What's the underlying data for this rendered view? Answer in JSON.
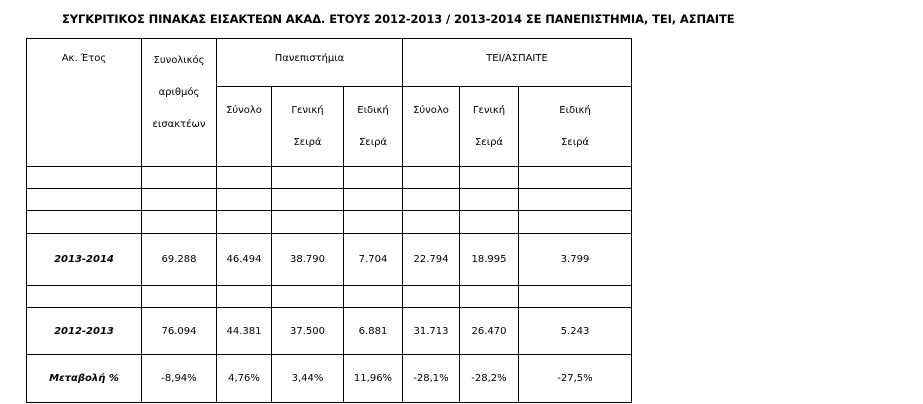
{
  "title": "ΣΥΓΚΡΙΤΙΚΟΣ ΠΙΝΑΚΑΣ ΕΙΣΑΚΤΕΩΝ ΑΚΑΔ. ΕΤΟΥΣ 2012-2013 / 2013-2014 ΣΕ ΠΑΝΕΠΙΣΤΗΜΙΑ, ΤΕΙ, ΑΣΠΑΙΤΕ",
  "table": {
    "header": {
      "year": "Ακ. Έτος",
      "total": [
        "Συνολικός",
        "αριθμός",
        "εισακτέων"
      ],
      "groups": [
        "Πανεπιστήμια",
        "ΤΕΙ/ΑΣΠΑΙΤΕ"
      ],
      "subheaders": [
        [
          "Σύνολο"
        ],
        [
          "Γενική",
          "Σειρά"
        ],
        [
          "Ειδική",
          "Σειρά"
        ],
        [
          "Σύνολο"
        ],
        [
          "Γενική",
          "Σειρά"
        ],
        [
          "Ειδική",
          "Σειρά"
        ]
      ]
    },
    "rows": [
      [
        "2013-2014",
        "69.288",
        "46.494",
        "38.790",
        "7.704",
        "22.794",
        "18.995",
        "3.799"
      ],
      [
        "2012-2013",
        "76.094",
        "44.381",
        "37.500",
        "6.881",
        "31.713",
        "26.470",
        "5.243"
      ],
      [
        "Μεταβολή %",
        "-8,94%",
        "4,76%",
        "3,44%",
        "11,96%",
        "-28,1%",
        "-28,2%",
        "-27,5%"
      ]
    ]
  }
}
